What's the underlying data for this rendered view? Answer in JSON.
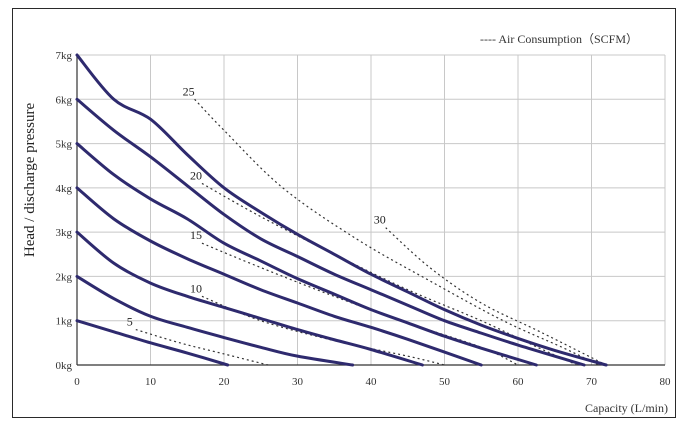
{
  "chart_data": {
    "type": "line",
    "ylabel": "Head / discharge pressure",
    "xlabel": "Capacity (L/min)",
    "xlim": [
      0,
      80
    ],
    "ylim": [
      0,
      7
    ],
    "x_ticks": [
      0,
      10,
      20,
      30,
      40,
      50,
      60,
      70,
      80
    ],
    "y_ticks": [
      "0kg",
      "1kg",
      "2kg",
      "3kg",
      "4kg",
      "5kg",
      "6kg",
      "7kg"
    ],
    "grid": true,
    "legend": {
      "label": "---- Air Consumption（SCFM）",
      "position": "top-right"
    },
    "series": [
      {
        "values": [
          [
            0,
            1
          ],
          [
            5,
            0.75
          ],
          [
            10,
            0.5
          ],
          [
            15,
            0.27
          ],
          [
            20.5,
            0
          ]
        ]
      },
      {
        "values": [
          [
            0,
            2
          ],
          [
            5,
            1.5
          ],
          [
            10,
            1.1
          ],
          [
            15,
            0.85
          ],
          [
            20,
            0.62
          ],
          [
            25,
            0.4
          ],
          [
            30,
            0.2
          ],
          [
            37.5,
            0
          ]
        ]
      },
      {
        "values": [
          [
            0,
            3
          ],
          [
            5,
            2.3
          ],
          [
            10,
            1.85
          ],
          [
            15,
            1.55
          ],
          [
            20,
            1.3
          ],
          [
            25,
            1.05
          ],
          [
            30,
            0.8
          ],
          [
            35,
            0.57
          ],
          [
            40,
            0.35
          ],
          [
            47,
            0
          ]
        ]
      },
      {
        "values": [
          [
            0,
            4
          ],
          [
            5,
            3.3
          ],
          [
            10,
            2.8
          ],
          [
            15,
            2.4
          ],
          [
            20,
            2.05
          ],
          [
            25,
            1.7
          ],
          [
            30,
            1.4
          ],
          [
            35,
            1.1
          ],
          [
            40,
            0.85
          ],
          [
            45,
            0.58
          ],
          [
            55,
            0
          ]
        ]
      },
      {
        "values": [
          [
            0,
            5
          ],
          [
            5,
            4.3
          ],
          [
            10,
            3.75
          ],
          [
            15,
            3.3
          ],
          [
            20,
            2.75
          ],
          [
            25,
            2.35
          ],
          [
            30,
            1.95
          ],
          [
            35,
            1.6
          ],
          [
            40,
            1.25
          ],
          [
            45,
            0.95
          ],
          [
            50,
            0.65
          ],
          [
            55,
            0.38
          ],
          [
            62.5,
            0
          ]
        ]
      },
      {
        "values": [
          [
            0,
            6
          ],
          [
            5,
            5.3
          ],
          [
            10,
            4.7
          ],
          [
            15,
            4.05
          ],
          [
            20,
            3.4
          ],
          [
            25,
            2.85
          ],
          [
            30,
            2.45
          ],
          [
            35,
            2.05
          ],
          [
            40,
            1.7
          ],
          [
            45,
            1.35
          ],
          [
            50,
            1.0
          ],
          [
            55,
            0.72
          ],
          [
            60,
            0.45
          ],
          [
            65,
            0.2
          ],
          [
            69,
            0
          ]
        ]
      },
      {
        "values": [
          [
            0,
            7
          ],
          [
            5,
            6.0
          ],
          [
            10,
            5.55
          ],
          [
            15,
            4.75
          ],
          [
            20,
            4.0
          ],
          [
            25,
            3.45
          ],
          [
            30,
            2.95
          ],
          [
            35,
            2.5
          ],
          [
            40,
            2.05
          ],
          [
            45,
            1.65
          ],
          [
            50,
            1.25
          ],
          [
            55,
            0.9
          ],
          [
            60,
            0.6
          ],
          [
            65,
            0.33
          ],
          [
            72,
            0
          ]
        ]
      }
    ],
    "air_consumption_lines": [
      {
        "label": "5",
        "points": [
          [
            8,
            0.8
          ],
          [
            14,
            0.5
          ],
          [
            20,
            0.25
          ],
          [
            26,
            0
          ]
        ]
      },
      {
        "label": "10",
        "points": [
          [
            17,
            1.55
          ],
          [
            25,
            1.0
          ],
          [
            35,
            0.55
          ],
          [
            45,
            0.2
          ],
          [
            50,
            0
          ]
        ]
      },
      {
        "label": "15",
        "points": [
          [
            17,
            2.75
          ],
          [
            25,
            2.2
          ],
          [
            35,
            1.55
          ],
          [
            45,
            0.95
          ],
          [
            55,
            0.4
          ],
          [
            60,
            0
          ]
        ]
      },
      {
        "label": "20",
        "points": [
          [
            17,
            4.1
          ],
          [
            25,
            3.35
          ],
          [
            35,
            2.5
          ],
          [
            45,
            1.7
          ],
          [
            55,
            1.0
          ],
          [
            62,
            0.45
          ],
          [
            68,
            0
          ]
        ]
      },
      {
        "label": "25",
        "points": [
          [
            16,
            6.0
          ],
          [
            20,
            5.3
          ],
          [
            28,
            4.0
          ],
          [
            38,
            2.85
          ],
          [
            48,
            1.9
          ],
          [
            58,
            1.0
          ],
          [
            66,
            0.4
          ],
          [
            71,
            0
          ]
        ]
      },
      {
        "label": "30",
        "points": [
          [
            42,
            3.1
          ],
          [
            48,
            2.2
          ],
          [
            55,
            1.4
          ],
          [
            63,
            0.75
          ],
          [
            72,
            0
          ]
        ]
      }
    ]
  }
}
